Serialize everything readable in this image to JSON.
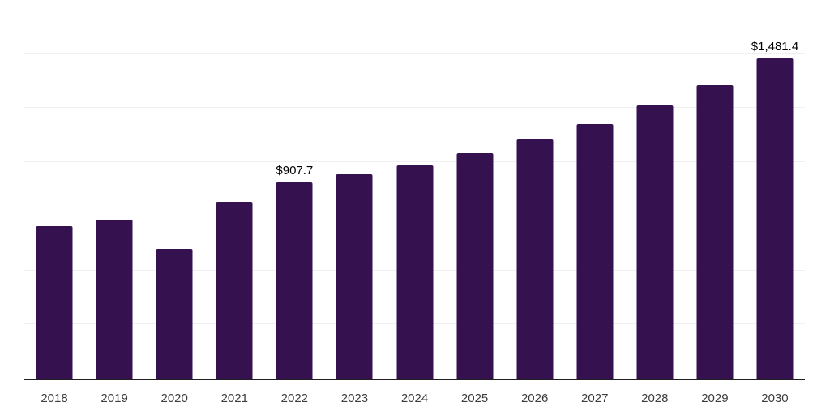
{
  "chart_data": {
    "type": "bar",
    "title": "",
    "categories": [
      "2018",
      "2019",
      "2020",
      "2021",
      "2022",
      "2023",
      "2024",
      "2025",
      "2026",
      "2027",
      "2028",
      "2029",
      "2030"
    ],
    "values": [
      705,
      735,
      600,
      817,
      907.7,
      944,
      987,
      1042,
      1105,
      1177,
      1263,
      1356,
      1481.4
    ],
    "data_labels": {
      "2022": "$907.7",
      "2030": "$1,481.4"
    },
    "ylim": [
      0,
      1750
    ],
    "gridline_values": [
      250,
      500,
      750,
      1000,
      1250,
      1500,
      1750
    ],
    "grid": "horizontal-only",
    "legend": "none",
    "x_axis_line": true,
    "y_axis_labels_visible": false,
    "colors": {
      "bar": "#351150",
      "gridline": "#f0f0f0",
      "axis_line": "#1f1f1f",
      "tick_label": "#3d3d3d",
      "data_label": "#000000",
      "background": "#ffffff"
    }
  }
}
